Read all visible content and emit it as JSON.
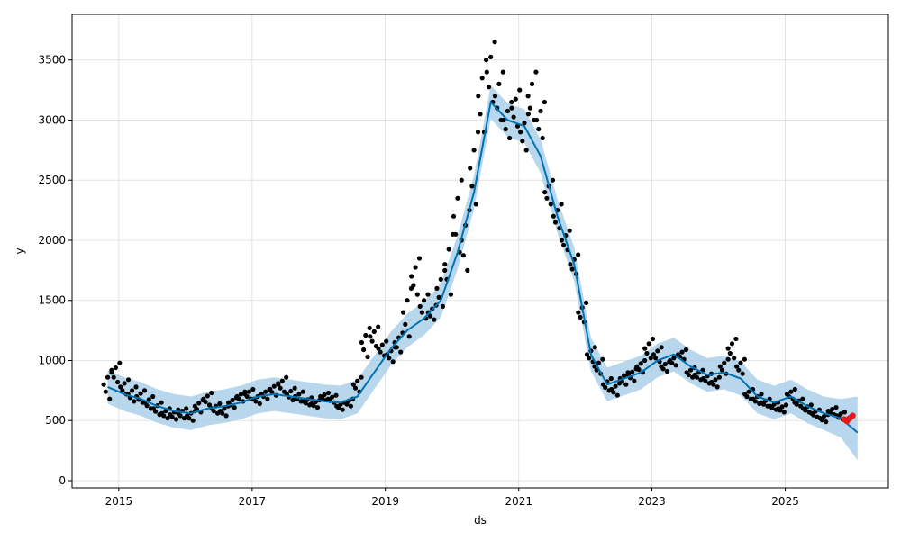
{
  "chart_data": {
    "type": "line",
    "xlabel": "ds",
    "ylabel": "y",
    "x_ticks": [
      "2015",
      "2017",
      "2019",
      "2021",
      "2023",
      "2025"
    ],
    "y_ticks": [
      "0",
      "500",
      "1000",
      "1500",
      "2000",
      "2500",
      "3000",
      "3500"
    ],
    "xlim": [
      "2014-04-20",
      "2026-07-20"
    ],
    "ylim": [
      -60,
      3880
    ],
    "grid": true,
    "colors": {
      "observed": "#000000",
      "forecast": "#0072B2",
      "interval": "#A6CDE7",
      "recent": "#E41A1C"
    },
    "forecast": {
      "x": [
        "2014-11-01",
        "2015-02-01",
        "2015-05-01",
        "2015-08-01",
        "2015-11-01",
        "2016-02-01",
        "2016-05-01",
        "2016-08-01",
        "2016-11-01",
        "2017-02-01",
        "2017-05-01",
        "2017-08-01",
        "2017-11-01",
        "2018-02-01",
        "2018-05-01",
        "2018-08-01",
        "2018-11-01",
        "2019-02-01",
        "2019-05-01",
        "2019-08-01",
        "2019-11-01",
        "2020-02-01",
        "2020-05-01",
        "2020-08-01",
        "2020-11-01",
        "2021-02-01",
        "2021-05-01",
        "2021-08-01",
        "2021-11-01",
        "2022-02-01",
        "2022-05-01",
        "2022-08-01",
        "2022-11-01",
        "2023-02-01",
        "2023-05-01",
        "2023-08-01",
        "2023-11-01",
        "2024-02-01",
        "2024-05-01",
        "2024-08-01",
        "2024-11-01",
        "2025-02-01",
        "2025-05-01",
        "2025-08-01",
        "2025-11-01",
        "2026-02-01"
      ],
      "yhat": [
        780,
        720,
        680,
        620,
        580,
        560,
        600,
        620,
        650,
        700,
        720,
        700,
        680,
        660,
        650,
        700,
        900,
        1100,
        1250,
        1350,
        1500,
        1900,
        2400,
        3150,
        3000,
        2950,
        2700,
        2200,
        1800,
        1050,
        800,
        850,
        900,
        1000,
        1050,
        950,
        880,
        900,
        850,
        700,
        650,
        700,
        620,
        560,
        520,
        400
      ],
      "lower": [
        640,
        580,
        540,
        480,
        440,
        420,
        460,
        480,
        510,
        560,
        580,
        560,
        540,
        520,
        510,
        560,
        760,
        960,
        1110,
        1210,
        1360,
        1760,
        2260,
        3010,
        2860,
        2810,
        2560,
        2060,
        1660,
        910,
        660,
        710,
        760,
        860,
        910,
        810,
        740,
        760,
        710,
        560,
        510,
        560,
        480,
        420,
        360,
        170
      ],
      "upper": [
        920,
        860,
        820,
        760,
        720,
        700,
        740,
        760,
        790,
        840,
        860,
        840,
        820,
        800,
        790,
        840,
        1040,
        1240,
        1390,
        1490,
        1640,
        2040,
        2540,
        3290,
        3140,
        3090,
        2840,
        2340,
        1940,
        1190,
        940,
        990,
        1040,
        1140,
        1190,
        1090,
        1020,
        1040,
        990,
        840,
        790,
        840,
        760,
        700,
        680,
        700
      ]
    },
    "observed": {
      "x": [
        "2014-11-01",
        "2014-12-15",
        "2015-02-01",
        "2015-03-15",
        "2015-05-01",
        "2015-06-15",
        "2015-08-01",
        "2015-09-15",
        "2015-11-01",
        "2015-12-15",
        "2016-02-01",
        "2016-03-15",
        "2016-05-01",
        "2016-06-15",
        "2016-08-01",
        "2016-09-15",
        "2016-11-01",
        "2016-12-15",
        "2017-02-01",
        "2017-03-15",
        "2017-05-01",
        "2017-06-15",
        "2017-08-01",
        "2017-09-15",
        "2017-11-01",
        "2017-12-15",
        "2018-02-01",
        "2018-03-15",
        "2018-05-01",
        "2018-06-15",
        "2018-08-01",
        "2018-09-15",
        "2018-11-01",
        "2018-12-15",
        "2019-02-01",
        "2019-03-15",
        "2019-05-01",
        "2019-06-15",
        "2019-08-01",
        "2019-09-15",
        "2019-11-01",
        "2019-12-15",
        "2020-02-01",
        "2020-03-15",
        "2020-05-01",
        "2020-06-15",
        "2020-08-01",
        "2020-09-15",
        "2020-11-01",
        "2020-12-15",
        "2021-02-01",
        "2021-03-15",
        "2021-05-01",
        "2021-06-15",
        "2021-08-01",
        "2021-09-15",
        "2021-11-01",
        "2021-12-15",
        "2022-02-01",
        "2022-03-15",
        "2022-05-01",
        "2022-06-15",
        "2022-08-01",
        "2022-09-15",
        "2022-11-01",
        "2022-12-15",
        "2023-02-01",
        "2023-03-15",
        "2023-05-01",
        "2023-06-15",
        "2023-08-01",
        "2023-09-15",
        "2023-11-01",
        "2023-12-15",
        "2024-02-01",
        "2024-03-15",
        "2024-05-01",
        "2024-06-15",
        "2024-08-01",
        "2024-09-15",
        "2024-11-01",
        "2024-12-15",
        "2025-02-01",
        "2025-03-15",
        "2025-05-01",
        "2025-06-15",
        "2025-08-01",
        "2025-09-15",
        "2025-11-01"
      ],
      "y": [
        800,
        900,
        780,
        720,
        700,
        650,
        600,
        560,
        550,
        560,
        540,
        620,
        680,
        600,
        580,
        650,
        700,
        720,
        680,
        720,
        760,
        800,
        720,
        700,
        660,
        640,
        700,
        680,
        620,
        650,
        800,
        1150,
        1200,
        1100,
        1050,
        1150,
        1400,
        1700,
        1450,
        1400,
        1600,
        1800,
        2200,
        2000,
        2600,
        3200,
        3400,
        3200,
        3000,
        3100,
        2900,
        3200,
        3000,
        2400,
        2200,
        2000,
        1800,
        1400,
        1050,
        950,
        800,
        760,
        850,
        880,
        950,
        1100,
        1050,
        950,
        1000,
        1050,
        900,
        880,
        850,
        820,
        950,
        1100,
        950,
        720,
        680,
        650,
        620,
        600,
        720,
        650,
        600,
        560,
        520,
        580,
        540
      ],
      "spread": [
        120,
        80,
        60,
        60,
        50,
        50,
        50,
        40,
        40,
        40,
        40,
        50,
        50,
        40,
        40,
        40,
        40,
        40,
        40,
        40,
        50,
        60,
        50,
        40,
        30,
        30,
        30,
        30,
        30,
        30,
        60,
        120,
        80,
        60,
        60,
        80,
        200,
        150,
        100,
        60,
        150,
        250,
        300,
        250,
        300,
        300,
        250,
        200,
        150,
        150,
        150,
        200,
        150,
        100,
        100,
        80,
        80,
        80,
        60,
        60,
        50,
        50,
        50,
        50,
        50,
        80,
        60,
        40,
        40,
        40,
        40,
        40,
        40,
        40,
        60,
        80,
        60,
        40,
        40,
        30,
        30,
        30,
        40,
        30,
        30,
        30,
        30,
        30,
        30
      ]
    },
    "recent": {
      "x": [
        "2025-11-20",
        "2025-12-05",
        "2025-12-20",
        "2026-01-05"
      ],
      "y": [
        510,
        495,
        520,
        540
      ]
    }
  }
}
